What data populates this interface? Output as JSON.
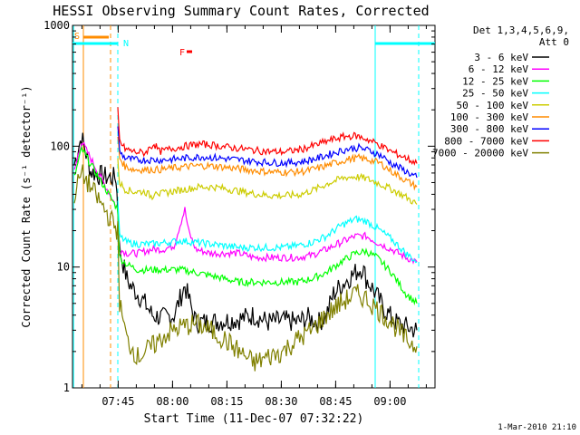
{
  "chart_data": {
    "type": "line",
    "title": "HESSI Observing Summary Count Rates, Corrected",
    "xlabel": "Start Time (11-Dec-07 07:32:22)",
    "ylabel": "Corrected Count Rate (s⁻¹ detector⁻¹)",
    "x_unit": "minutes after 07:32:22",
    "xlim": [
      0,
      100
    ],
    "ylim": [
      1,
      1000
    ],
    "yscale": "log",
    "x_ticks": [
      {
        "t": 12.6,
        "label": "07:45"
      },
      {
        "t": 27.6,
        "label": "08:00"
      },
      {
        "t": 42.6,
        "label": "08:15"
      },
      {
        "t": 57.6,
        "label": "08:30"
      },
      {
        "t": 72.6,
        "label": "08:45"
      },
      {
        "t": 87.6,
        "label": "09:00"
      }
    ],
    "y_ticks": [
      {
        "v": 1,
        "label": "1"
      },
      {
        "v": 10,
        "label": "10"
      },
      {
        "v": 100,
        "label": "100"
      },
      {
        "v": 1000,
        "label": "1000"
      }
    ],
    "legend": {
      "placement": "right",
      "header": [
        "Det 1,3,4,5,6,9,",
        "Att 0"
      ]
    },
    "series": [
      {
        "name": "3 - 6 keV",
        "color": "#000000",
        "x": [
          0.5,
          1.5,
          2.5,
          5,
          7,
          10,
          12,
          12.5,
          13,
          15,
          16,
          18,
          20,
          22,
          25,
          28,
          31,
          34,
          38,
          42,
          46,
          50,
          54,
          58,
          62,
          65,
          68,
          70,
          72,
          75,
          78,
          80,
          81,
          83,
          86,
          89,
          92,
          95
        ],
        "y": [
          70,
          95,
          120,
          62,
          58,
          55,
          55,
          30,
          14,
          8,
          7,
          6,
          5,
          4,
          3.8,
          4,
          7,
          3.5,
          3.5,
          3.6,
          3.7,
          4,
          3.5,
          3.6,
          3.5,
          3.8,
          3.5,
          4,
          6,
          7.5,
          9,
          10,
          8,
          6.5,
          4.5,
          3.5,
          3.2,
          3
        ]
      },
      {
        "name": "6 - 12 keV",
        "color": "#ff00ff",
        "x": [
          0.5,
          2.5,
          12.5,
          13,
          15,
          18,
          20,
          22,
          25,
          28,
          30,
          31,
          32,
          34,
          38,
          42,
          46,
          50,
          54,
          58,
          62,
          66,
          70,
          74,
          78,
          81,
          84,
          88,
          92,
          95
        ],
        "y": [
          62,
          110,
          30,
          14,
          13,
          13,
          13.5,
          14,
          14,
          15,
          24,
          30,
          20,
          14,
          13,
          13,
          13,
          12,
          12,
          12,
          12,
          12.5,
          14,
          16,
          18,
          18,
          16,
          14,
          12,
          11
        ]
      },
      {
        "name": "12 - 25 keV",
        "color": "#00ff00",
        "x": [
          0.5,
          2.5,
          12.5,
          13,
          15,
          18,
          22,
          26,
          30,
          34,
          38,
          42,
          46,
          50,
          54,
          58,
          62,
          66,
          70,
          74,
          78,
          81,
          84,
          88,
          92,
          95
        ],
        "y": [
          55,
          95,
          30,
          12,
          10.5,
          9.5,
          9.5,
          9.5,
          9.5,
          9,
          8.5,
          8,
          7.5,
          7.5,
          7.5,
          7.5,
          7.5,
          8,
          9,
          11,
          13,
          13.5,
          12,
          9,
          6,
          5
        ]
      },
      {
        "name": "25 - 50 keV",
        "color": "#00ffff",
        "x": [
          12.5,
          13,
          15,
          18,
          22,
          26,
          30,
          34,
          38,
          42,
          46,
          50,
          54,
          58,
          62,
          66,
          70,
          74,
          78,
          81,
          84,
          88,
          92,
          95
        ],
        "y": [
          36,
          18,
          16,
          15.5,
          15.5,
          16,
          16.5,
          16,
          15.5,
          15,
          14.5,
          14.5,
          14.5,
          14.5,
          15,
          16,
          18,
          22,
          25,
          24,
          21,
          17,
          13,
          11
        ]
      },
      {
        "name": "50 - 100 keV",
        "color": "#cccc00",
        "x": [
          12.5,
          13,
          14.5,
          17,
          20,
          22,
          23,
          24,
          27,
          31,
          35,
          39,
          43,
          47,
          51,
          55,
          59,
          63,
          67,
          71,
          75,
          78,
          81,
          84,
          88,
          92,
          95
        ],
        "y": [
          75,
          50,
          44,
          42,
          42,
          38,
          44,
          40,
          42,
          44,
          46,
          46,
          44,
          42,
          40,
          39,
          39,
          40,
          44,
          50,
          55,
          56,
          54,
          50,
          44,
          38,
          33
        ]
      },
      {
        "name": "100 - 300 keV",
        "color": "#ff8c00",
        "x": [
          12.5,
          13,
          14.5,
          17,
          20,
          24,
          28,
          32,
          36,
          40,
          44,
          48,
          52,
          56,
          60,
          64,
          68,
          72,
          76,
          79,
          82,
          85,
          88,
          92,
          95
        ],
        "y": [
          120,
          80,
          68,
          64,
          64,
          64,
          66,
          68,
          69,
          68,
          66,
          64,
          62,
          61,
          61,
          62,
          66,
          72,
          78,
          80,
          77,
          72,
          62,
          52,
          46
        ]
      },
      {
        "name": "300 - 800 keV",
        "color": "#0000ff",
        "x": [
          12.5,
          13,
          14.5,
          17,
          20,
          24,
          28,
          32,
          36,
          40,
          44,
          48,
          52,
          56,
          60,
          64,
          68,
          72,
          76,
          79,
          82,
          85,
          88,
          92,
          95
        ],
        "y": [
          150,
          90,
          80,
          77,
          77,
          77,
          78,
          80,
          82,
          80,
          78,
          76,
          74,
          73,
          73,
          75,
          80,
          88,
          95,
          97,
          92,
          84,
          72,
          62,
          55
        ]
      },
      {
        "name": "800 - 7000 keV",
        "color": "#ff0000",
        "x": [
          12.5,
          13,
          14.5,
          17,
          20,
          22.5,
          24,
          27,
          31,
          35,
          39,
          43,
          47,
          51,
          55,
          59,
          63,
          67,
          71,
          75,
          78,
          81,
          84,
          88,
          92,
          95
        ],
        "y": [
          200,
          110,
          95,
          90,
          88,
          105,
          90,
          95,
          100,
          104,
          102,
          98,
          95,
          92,
          90,
          90,
          94,
          102,
          112,
          120,
          122,
          115,
          105,
          90,
          80,
          72
        ]
      },
      {
        "name": "7000 - 20000 keV",
        "color": "#808000",
        "x": [
          0.5,
          2.5,
          12.5,
          13,
          15,
          18,
          22,
          26,
          30,
          34,
          38,
          42,
          46,
          50,
          54,
          58,
          62,
          66,
          70,
          74,
          78,
          81,
          84,
          88,
          92,
          95
        ],
        "y": [
          40,
          60,
          20,
          5,
          2.5,
          1.8,
          2.2,
          2.8,
          3.2,
          3.4,
          3,
          2.5,
          2,
          1.6,
          1.8,
          2,
          2.5,
          3,
          4,
          5,
          6,
          5.5,
          4.5,
          3.5,
          2.5,
          2.2
        ]
      }
    ],
    "annotations": {
      "flare_flag_label": "F",
      "saa_flag_label": "S",
      "night_flag_label": "N",
      "night_intervals": [
        [
          0,
          12.5
        ],
        [
          83.5,
          100
        ]
      ],
      "flare_interval": [
        31.5,
        33
      ],
      "attenuator_intervals": [
        [
          3,
          10
        ]
      ],
      "cyan_dashed_lines": [
        12.5,
        95.5
      ],
      "orange_dashed_lines": [
        10.5
      ],
      "cyan_solid_lines": [
        83.5
      ]
    }
  },
  "footer": {
    "timestamp": "1-Mar-2010 21:10"
  }
}
